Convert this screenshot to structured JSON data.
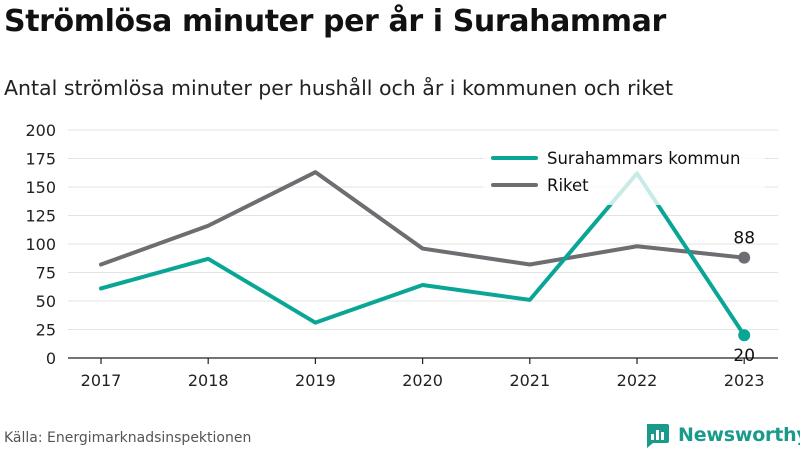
{
  "title": "Strömlösa minuter per år i Surahammar",
  "subtitle": "Antal strömlösa minuter per hushåll och år i kommunen och riket",
  "source": "Källa: Energimarknadsinspektionen",
  "brand": "Newsworthy",
  "colors": {
    "kommun": "#0aa695",
    "riket": "#6d6d72",
    "brand": "#1a9a8a",
    "grid": "#e3e3e3"
  },
  "chart_data": {
    "type": "line",
    "x": [
      "2017",
      "2018",
      "2019",
      "2020",
      "2021",
      "2022",
      "2023"
    ],
    "ylim": [
      0,
      200
    ],
    "yticks": [
      "0",
      "25",
      "50",
      "75",
      "100",
      "125",
      "150",
      "175",
      "200"
    ],
    "grid": true,
    "legend_position": "top-right",
    "series": [
      {
        "name": "Surahammars kommun",
        "values": [
          61,
          87,
          31,
          64,
          51,
          162,
          20
        ],
        "end_label": "20",
        "color": "#0aa695"
      },
      {
        "name": "Riket",
        "values": [
          82,
          116,
          163,
          96,
          82,
          98,
          88
        ],
        "end_label": "88",
        "color": "#6d6d72"
      }
    ]
  }
}
